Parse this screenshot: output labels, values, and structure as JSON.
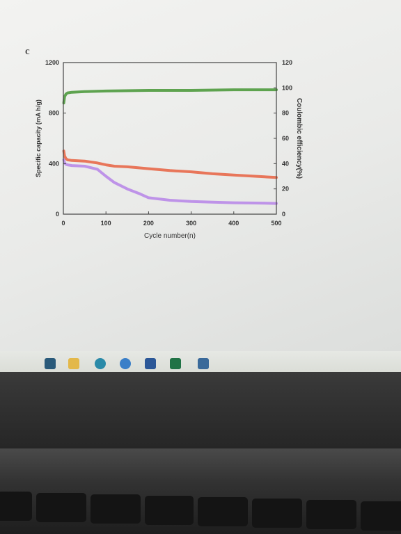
{
  "panel_label": "c",
  "chart_data": {
    "type": "line",
    "xlabel": "Cycle number(n)",
    "ylabel_left": "Specific capacity (mA h/g)",
    "ylabel_right": "Coulombic efficiency(%)",
    "xlim": [
      0,
      500
    ],
    "ylim_left": [
      0,
      1200
    ],
    "ylim_right": [
      0,
      120
    ],
    "x_ticks": [
      "0",
      "100",
      "200",
      "300",
      "400",
      "500"
    ],
    "y_left_ticks": [
      "0",
      "400",
      "800",
      "1200"
    ],
    "y_right_ticks": [
      "0",
      "20",
      "40",
      "60",
      "80",
      "100",
      "120"
    ],
    "grid": false,
    "series": [
      {
        "axis": "right",
        "color": "#4e9a3e",
        "x": [
          1,
          3,
          6,
          10,
          20,
          50,
          100,
          200,
          300,
          400,
          500
        ],
        "y": [
          88,
          93,
          95,
          96,
          96.5,
          97,
          97.5,
          98,
          98,
          98.5,
          98.5
        ]
      },
      {
        "axis": "left",
        "color": "#e8694a",
        "x": [
          1,
          3,
          6,
          10,
          20,
          50,
          80,
          100,
          120,
          150,
          200,
          250,
          300,
          350,
          400,
          450,
          500
        ],
        "y": [
          500,
          460,
          440,
          430,
          425,
          420,
          405,
          390,
          380,
          375,
          360,
          345,
          335,
          320,
          310,
          300,
          290
        ]
      },
      {
        "axis": "left",
        "color": "#b98ae8",
        "x": [
          1,
          3,
          6,
          10,
          20,
          50,
          80,
          100,
          120,
          150,
          180,
          200,
          250,
          300,
          350,
          400,
          450,
          500
        ],
        "y": [
          430,
          405,
          395,
          390,
          385,
          380,
          355,
          300,
          250,
          200,
          160,
          130,
          110,
          100,
          95,
          90,
          88,
          85
        ]
      }
    ]
  },
  "taskbar": {
    "icons": [
      "mail-icon",
      "folder-icon",
      "edge-icon",
      "skype-icon",
      "word-icon",
      "excel-icon",
      "photos-icon"
    ]
  }
}
